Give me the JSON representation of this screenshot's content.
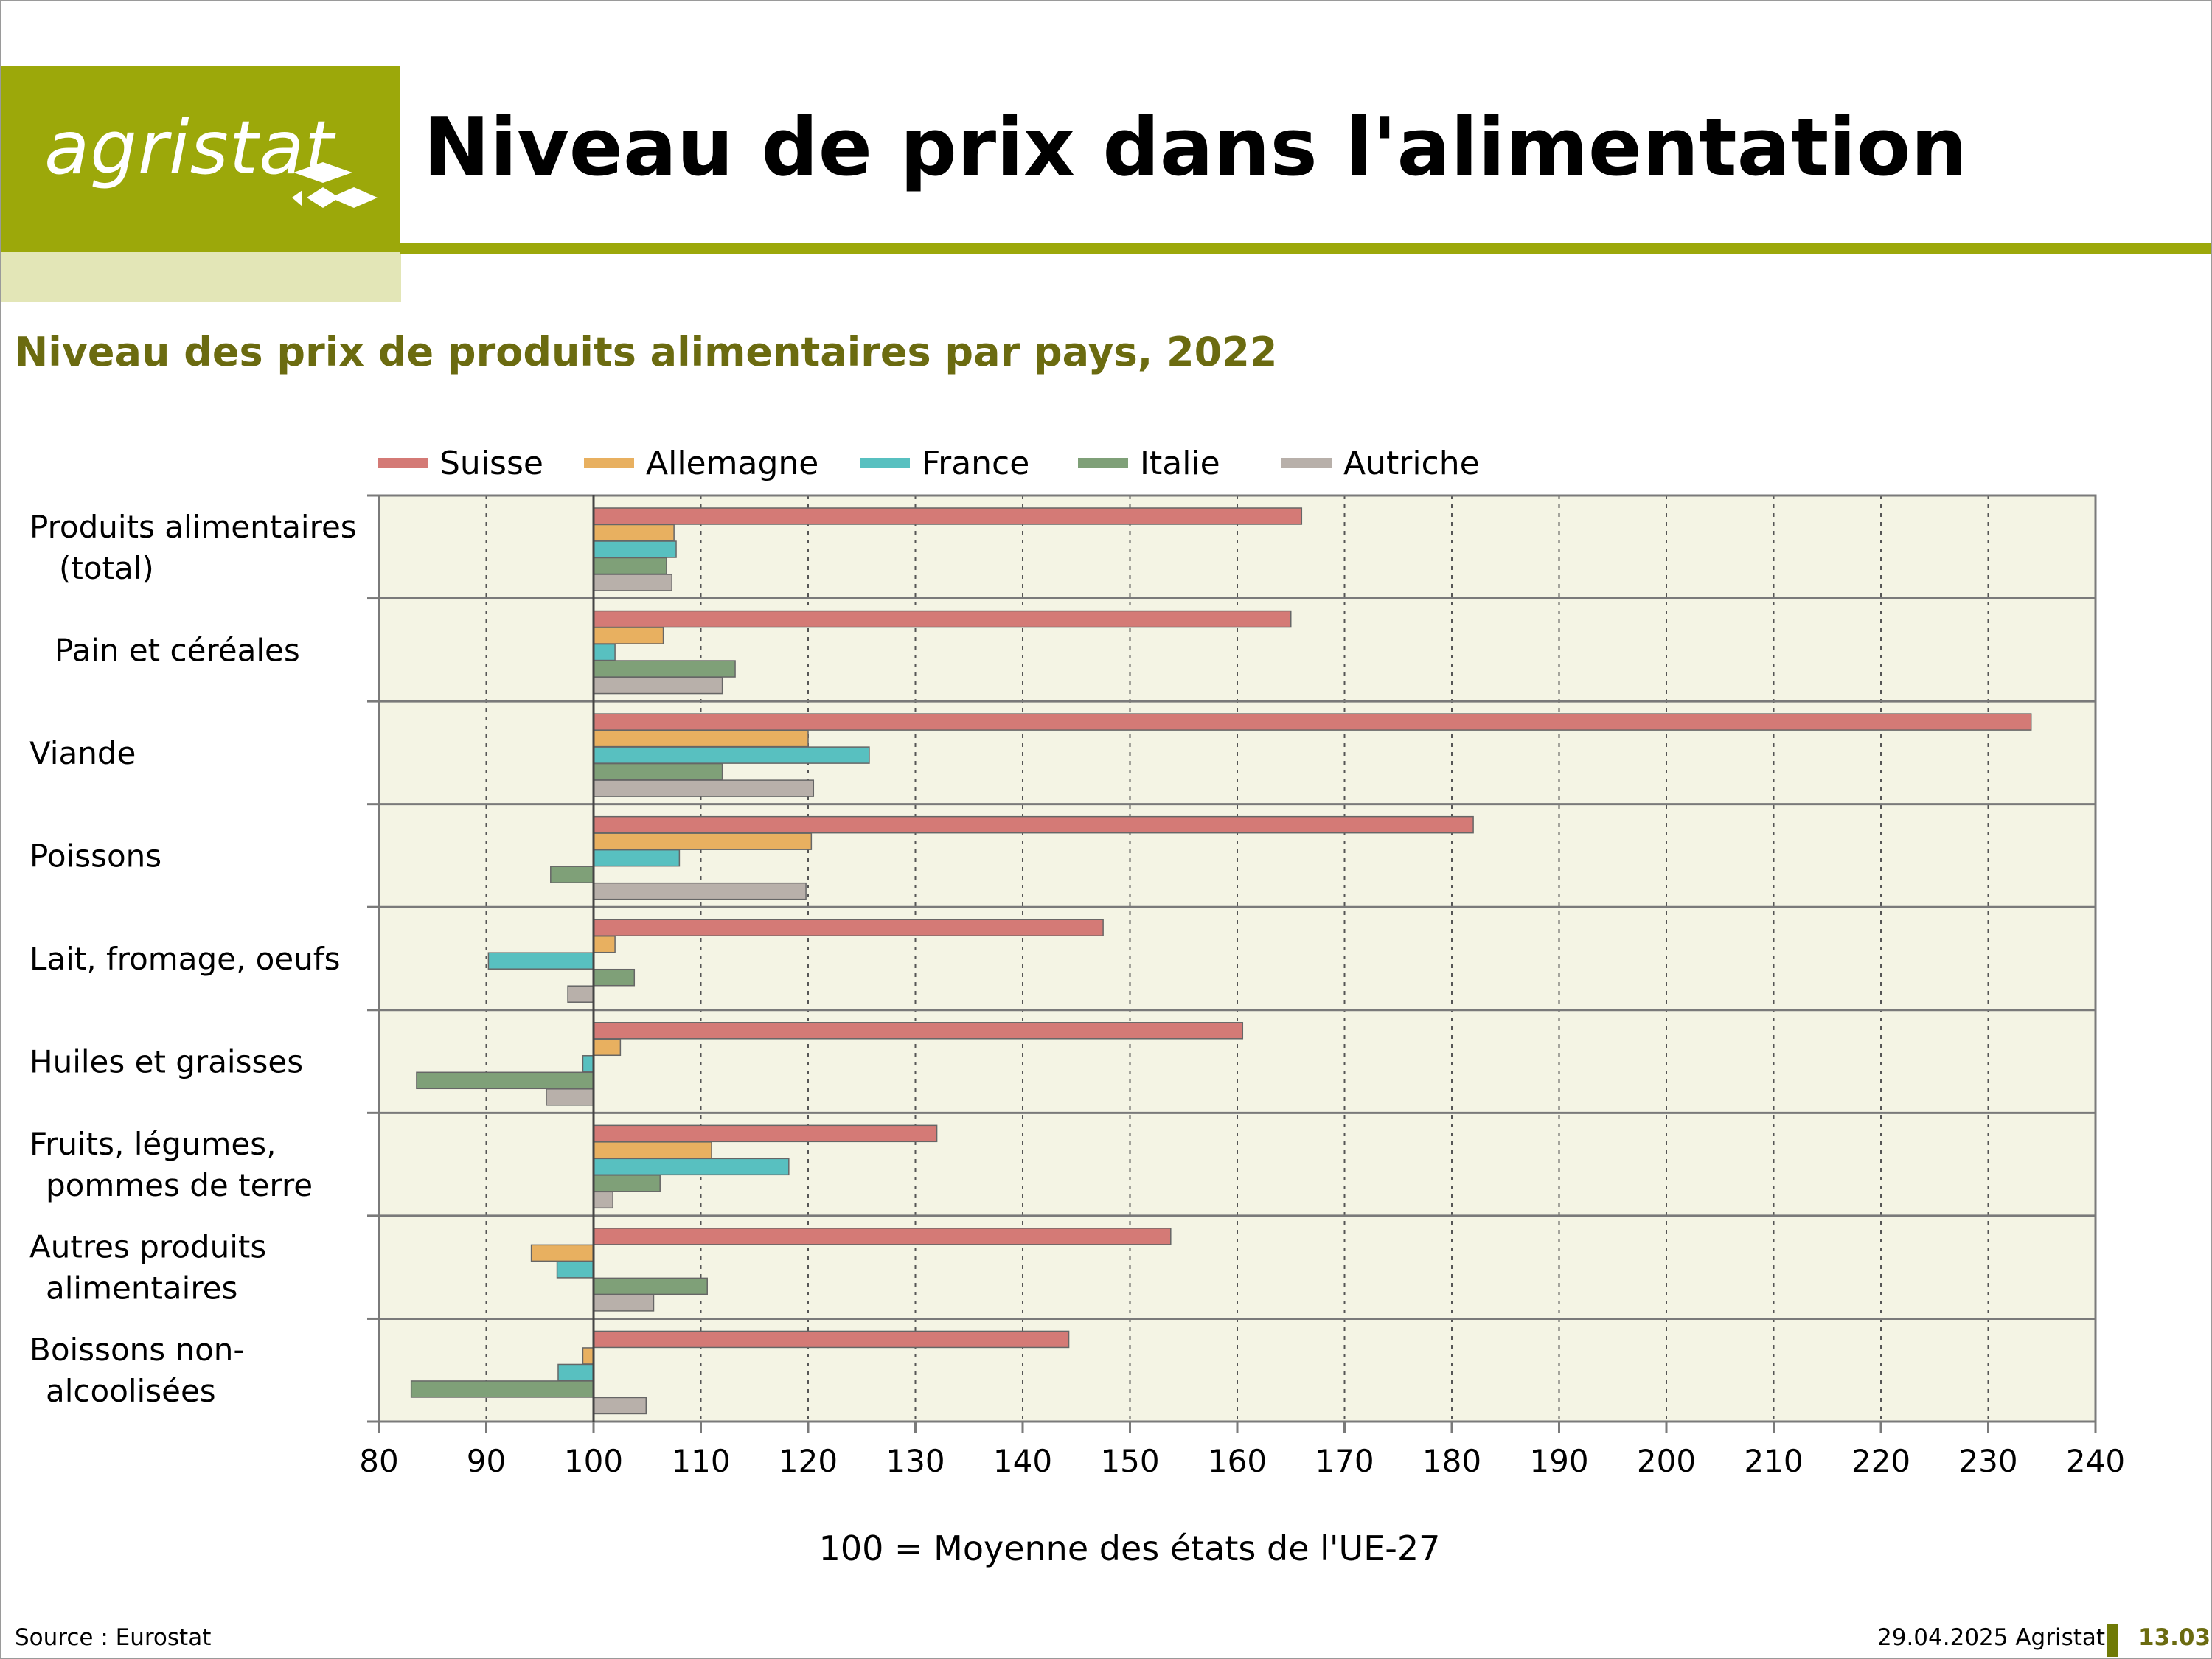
{
  "brand": {
    "logo_text": "agristat",
    "logo_mark": "agristat-diamond-mark",
    "colors": {
      "accent": "#9ca80a",
      "accent_light": "#e3e6b7",
      "title_green": "#6b6b10"
    }
  },
  "header": {
    "title": "Niveau de prix dans l'alimentation"
  },
  "footer": {
    "source": "Source : Eurostat",
    "date_org": "29.04.2025 Agristat",
    "page": "13.03"
  },
  "chart_data": {
    "type": "bar",
    "orientation": "horizontal",
    "title": "Niveau des prix de produits alimentaires par pays, 2022",
    "xlabel": "100 = Moyenne des états de l'UE-27",
    "ylabel": "",
    "baseline": 100,
    "xlim": [
      80,
      240
    ],
    "xticks": [
      80,
      90,
      100,
      110,
      120,
      130,
      140,
      150,
      160,
      170,
      180,
      190,
      200,
      210,
      220,
      230,
      240
    ],
    "grid": "vertical-dotted",
    "legend_position": "top",
    "plot_background": "#f4f4e4",
    "categories": [
      [
        "Produits alimentaires",
        "(total)"
      ],
      [
        "Pain et céréales"
      ],
      [
        "Viande"
      ],
      [
        "Poissons"
      ],
      [
        "Lait, fromage, oeufs"
      ],
      [
        "Huiles et graisses"
      ],
      [
        "Fruits, légumes,",
        "pommes de terre"
      ],
      [
        "Autres produits",
        "alimentaires"
      ],
      [
        "Boissons non-",
        "alcoolisées"
      ]
    ],
    "series": [
      {
        "name": "Suisse",
        "color": "#d47a76",
        "values": [
          166,
          165,
          234,
          182,
          147.5,
          160.5,
          132,
          153.8,
          144.3
        ]
      },
      {
        "name": "Allemagne",
        "color": "#e8b060",
        "values": [
          107.5,
          106.5,
          120,
          120.3,
          102,
          102.5,
          111,
          94.2,
          99
        ]
      },
      {
        "name": "France",
        "color": "#58c0c0",
        "values": [
          107.7,
          102,
          125.7,
          108,
          90.2,
          99,
          118.2,
          96.6,
          96.7
        ]
      },
      {
        "name": "Italie",
        "color": "#7fa078",
        "values": [
          106.8,
          113.2,
          112,
          96,
          103.8,
          83.5,
          106.2,
          110.6,
          83
        ]
      },
      {
        "name": "Autriche",
        "color": "#b8b0aa",
        "values": [
          107.3,
          112,
          120.5,
          119.8,
          97.6,
          95.6,
          101.8,
          105.6,
          104.9
        ]
      }
    ]
  }
}
